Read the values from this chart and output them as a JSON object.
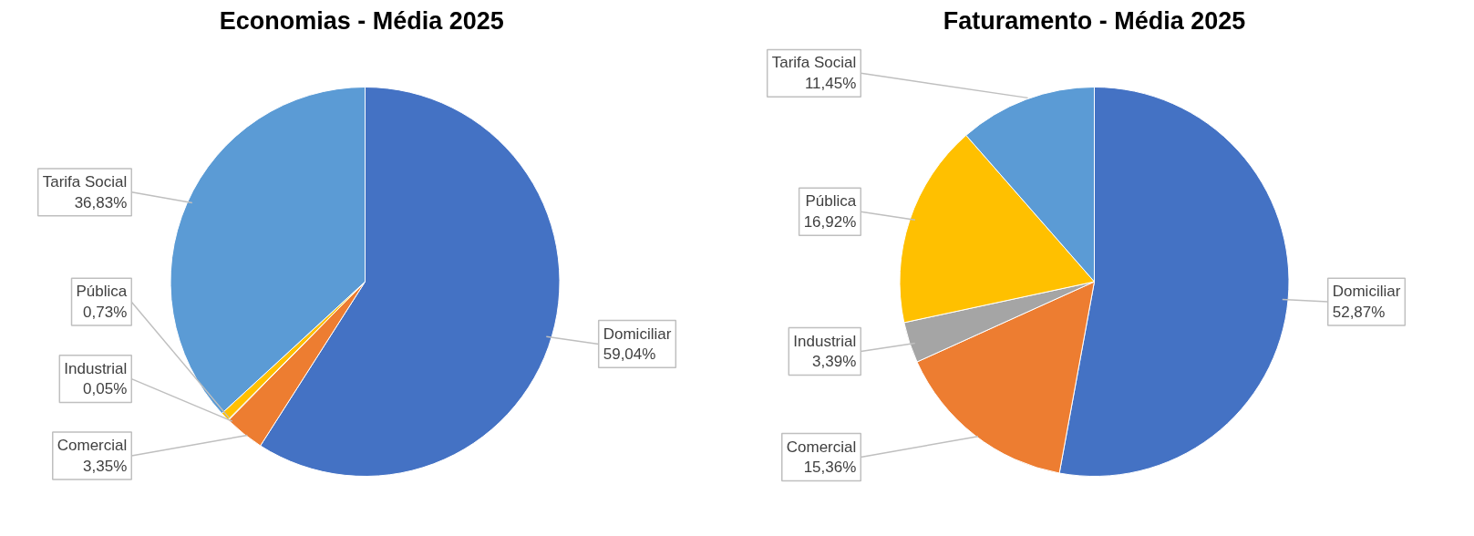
{
  "chart_data": [
    {
      "type": "pie",
      "title": "Economias -  Média 2025",
      "categories": [
        "Domiciliar",
        "Comercial",
        "Industrial",
        "Pública",
        "Tarifa Social"
      ],
      "values": [
        59.04,
        3.35,
        0.05,
        0.73,
        36.83
      ],
      "value_labels": [
        "59,04%",
        "3,35%",
        "0,05%",
        "0,73%",
        "36,83%"
      ],
      "colors": [
        "#4472c4",
        "#ed7d31",
        "#a5a5a5",
        "#ffc000",
        "#5b9bd5"
      ],
      "legend": false
    },
    {
      "type": "pie",
      "title": "Faturamento - Média 2025",
      "categories": [
        "Domiciliar",
        "Comercial",
        "Industrial",
        "Pública",
        "Tarifa Social"
      ],
      "values": [
        52.87,
        15.36,
        3.39,
        16.92,
        11.45
      ],
      "value_labels": [
        "52,87%",
        "15,36%",
        "3,39%",
        "16,92%",
        "11,45%"
      ],
      "colors": [
        "#4472c4",
        "#ed7d31",
        "#a5a5a5",
        "#ffc000",
        "#5b9bd5"
      ],
      "legend": false
    }
  ]
}
